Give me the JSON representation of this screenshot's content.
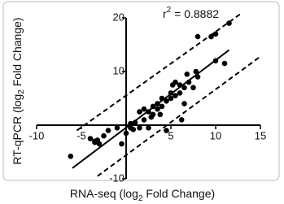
{
  "chart_data": {
    "type": "scatter",
    "x_label": [
      "RNA-seq (log",
      "2",
      " Fold Change)"
    ],
    "y_label": [
      "RT-qPCR (log",
      "2",
      " Fold Change)"
    ],
    "annotation": [
      "r",
      "2",
      " = 0.8882"
    ],
    "xlim": [
      -10,
      15
    ],
    "ylim": [
      -10,
      20
    ],
    "xticks": [
      -10,
      -5,
      5,
      10,
      15
    ],
    "yticks": [
      -10,
      10,
      20
    ],
    "color": "#000000",
    "x": [
      -6.2,
      -4,
      -3.5,
      -3.2,
      -3,
      -2.5,
      -1,
      -0.5,
      0,
      0.5,
      0.5,
      1,
      1.5,
      1.5,
      2,
      2,
      2.5,
      2.5,
      3,
      3,
      3.5,
      3.5,
      4,
      4,
      4.5,
      4.5,
      5,
      5,
      5.5,
      5.5,
      6,
      6,
      6.5,
      6.5,
      7,
      7.5,
      8,
      8,
      9.5,
      10,
      10,
      11.5,
      11,
      -3.5,
      -2,
      0.8,
      2.8,
      3.8,
      5.2,
      6.8,
      7.8,
      6.2
    ],
    "y": [
      -5.8,
      -2.5,
      -3,
      -2.8,
      -3.5,
      -2,
      -0.5,
      -3.5,
      -1.5,
      -0.5,
      0.3,
      0.5,
      -0.5,
      2.5,
      1,
      3,
      2.5,
      -0.5,
      3.5,
      2,
      4,
      3,
      5,
      3.5,
      4.5,
      -1,
      6,
      5,
      5.5,
      8,
      7.5,
      6,
      4,
      7,
      8,
      7,
      9,
      16.5,
      16.5,
      17,
      12,
      19,
      11.5,
      -3.2,
      -1,
      -0.8,
      1.5,
      2,
      7.5,
      9.5,
      10,
      1
    ],
    "lines": [
      {
        "style": "solid",
        "x": [
          -6,
          11.5
        ],
        "y": [
          -8,
          14
        ]
      },
      {
        "style": "dashed",
        "x": [
          -5.5,
          13
        ],
        "y": [
          -1,
          21
        ]
      },
      {
        "style": "dashed",
        "x": [
          -3.2,
          15
        ],
        "y": [
          -9.5,
          12.8
        ]
      }
    ]
  }
}
